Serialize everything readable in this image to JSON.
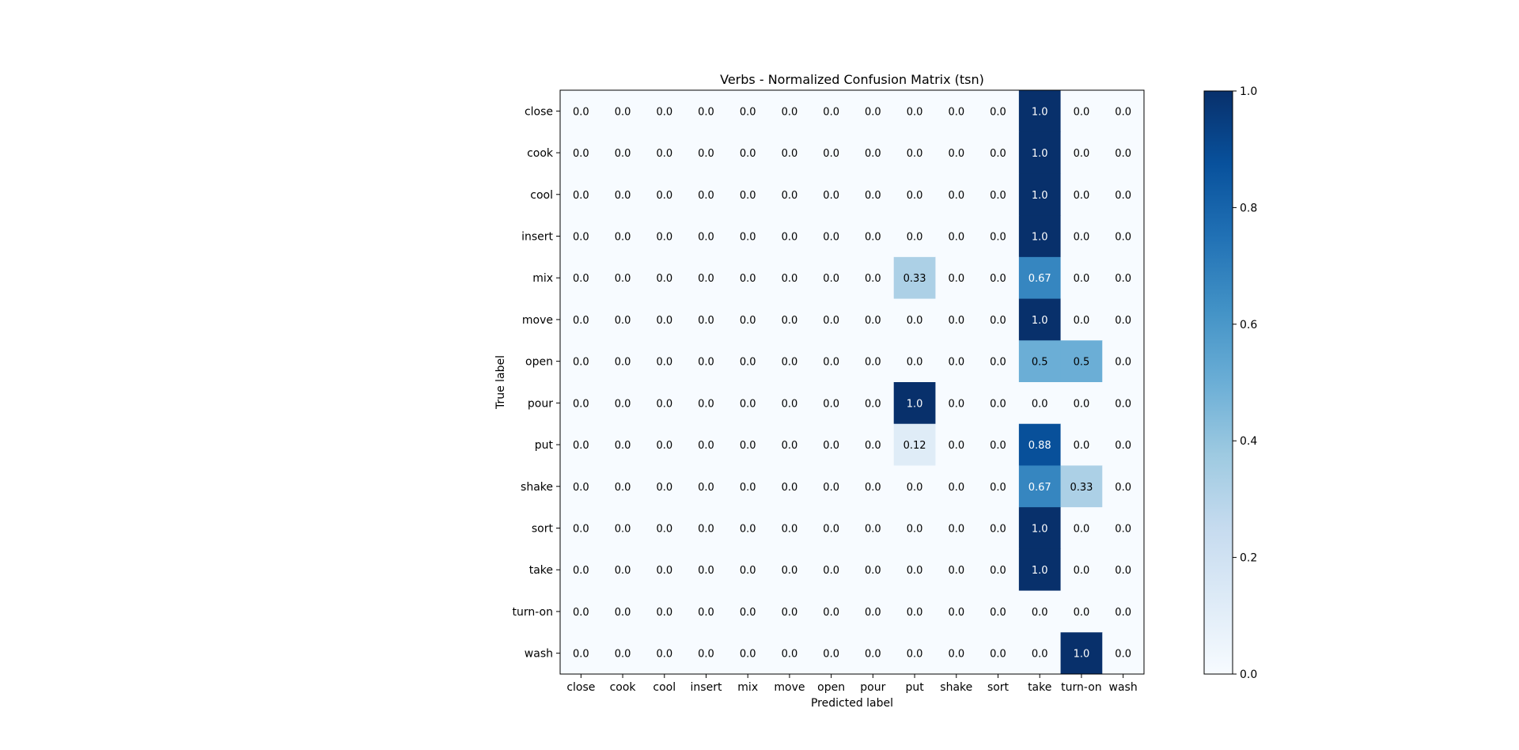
{
  "chart_data": {
    "type": "heatmap",
    "title": "Verbs - Normalized Confusion Matrix (tsn)",
    "xlabel": "Predicted label",
    "ylabel": "True label",
    "x_categories": [
      "close",
      "cook",
      "cool",
      "insert",
      "mix",
      "move",
      "open",
      "pour",
      "put",
      "shake",
      "sort",
      "take",
      "turn-on",
      "wash"
    ],
    "y_categories": [
      "close",
      "cook",
      "cool",
      "insert",
      "mix",
      "move",
      "open",
      "pour",
      "put",
      "shake",
      "sort",
      "take",
      "turn-on",
      "wash"
    ],
    "values": [
      [
        0,
        0,
        0,
        0,
        0,
        0,
        0,
        0,
        0,
        0,
        0,
        1.0,
        0,
        0
      ],
      [
        0,
        0,
        0,
        0,
        0,
        0,
        0,
        0,
        0,
        0,
        0,
        1.0,
        0,
        0
      ],
      [
        0,
        0,
        0,
        0,
        0,
        0,
        0,
        0,
        0,
        0,
        0,
        1.0,
        0,
        0
      ],
      [
        0,
        0,
        0,
        0,
        0,
        0,
        0,
        0,
        0,
        0,
        0,
        1.0,
        0,
        0
      ],
      [
        0,
        0,
        0,
        0,
        0,
        0,
        0,
        0,
        0.33,
        0,
        0,
        0.67,
        0,
        0
      ],
      [
        0,
        0,
        0,
        0,
        0,
        0,
        0,
        0,
        0,
        0,
        0,
        1.0,
        0,
        0
      ],
      [
        0,
        0,
        0,
        0,
        0,
        0,
        0,
        0,
        0,
        0,
        0,
        0.5,
        0.5,
        0
      ],
      [
        0,
        0,
        0,
        0,
        0,
        0,
        0,
        0,
        1.0,
        0,
        0,
        0,
        0,
        0
      ],
      [
        0,
        0,
        0,
        0,
        0,
        0,
        0,
        0,
        0.12,
        0,
        0,
        0.88,
        0,
        0
      ],
      [
        0,
        0,
        0,
        0,
        0,
        0,
        0,
        0,
        0,
        0,
        0,
        0.67,
        0.33,
        0
      ],
      [
        0,
        0,
        0,
        0,
        0,
        0,
        0,
        0,
        0,
        0,
        0,
        1.0,
        0,
        0
      ],
      [
        0,
        0,
        0,
        0,
        0,
        0,
        0,
        0,
        0,
        0,
        0,
        1.0,
        0,
        0
      ],
      [
        0,
        0,
        0,
        0,
        0,
        0,
        0,
        0,
        0,
        0,
        0,
        0,
        0,
        0
      ],
      [
        0,
        0,
        0,
        0,
        0,
        0,
        0,
        0,
        0,
        0,
        0,
        0,
        1.0,
        0
      ]
    ],
    "labels": [
      [
        "0.0",
        "0.0",
        "0.0",
        "0.0",
        "0.0",
        "0.0",
        "0.0",
        "0.0",
        "0.0",
        "0.0",
        "0.0",
        "1.0",
        "0.0",
        "0.0"
      ],
      [
        "0.0",
        "0.0",
        "0.0",
        "0.0",
        "0.0",
        "0.0",
        "0.0",
        "0.0",
        "0.0",
        "0.0",
        "0.0",
        "1.0",
        "0.0",
        "0.0"
      ],
      [
        "0.0",
        "0.0",
        "0.0",
        "0.0",
        "0.0",
        "0.0",
        "0.0",
        "0.0",
        "0.0",
        "0.0",
        "0.0",
        "1.0",
        "0.0",
        "0.0"
      ],
      [
        "0.0",
        "0.0",
        "0.0",
        "0.0",
        "0.0",
        "0.0",
        "0.0",
        "0.0",
        "0.0",
        "0.0",
        "0.0",
        "1.0",
        "0.0",
        "0.0"
      ],
      [
        "0.0",
        "0.0",
        "0.0",
        "0.0",
        "0.0",
        "0.0",
        "0.0",
        "0.0",
        "0.33",
        "0.0",
        "0.0",
        "0.67",
        "0.0",
        "0.0"
      ],
      [
        "0.0",
        "0.0",
        "0.0",
        "0.0",
        "0.0",
        "0.0",
        "0.0",
        "0.0",
        "0.0",
        "0.0",
        "0.0",
        "1.0",
        "0.0",
        "0.0"
      ],
      [
        "0.0",
        "0.0",
        "0.0",
        "0.0",
        "0.0",
        "0.0",
        "0.0",
        "0.0",
        "0.0",
        "0.0",
        "0.0",
        "0.5",
        "0.5",
        "0.0"
      ],
      [
        "0.0",
        "0.0",
        "0.0",
        "0.0",
        "0.0",
        "0.0",
        "0.0",
        "0.0",
        "1.0",
        "0.0",
        "0.0",
        "0.0",
        "0.0",
        "0.0"
      ],
      [
        "0.0",
        "0.0",
        "0.0",
        "0.0",
        "0.0",
        "0.0",
        "0.0",
        "0.0",
        "0.12",
        "0.0",
        "0.0",
        "0.88",
        "0.0",
        "0.0"
      ],
      [
        "0.0",
        "0.0",
        "0.0",
        "0.0",
        "0.0",
        "0.0",
        "0.0",
        "0.0",
        "0.0",
        "0.0",
        "0.0",
        "0.67",
        "0.33",
        "0.0"
      ],
      [
        "0.0",
        "0.0",
        "0.0",
        "0.0",
        "0.0",
        "0.0",
        "0.0",
        "0.0",
        "0.0",
        "0.0",
        "0.0",
        "1.0",
        "0.0",
        "0.0"
      ],
      [
        "0.0",
        "0.0",
        "0.0",
        "0.0",
        "0.0",
        "0.0",
        "0.0",
        "0.0",
        "0.0",
        "0.0",
        "0.0",
        "1.0",
        "0.0",
        "0.0"
      ],
      [
        "0.0",
        "0.0",
        "0.0",
        "0.0",
        "0.0",
        "0.0",
        "0.0",
        "0.0",
        "0.0",
        "0.0",
        "0.0",
        "0.0",
        "0.0",
        "0.0"
      ],
      [
        "0.0",
        "0.0",
        "0.0",
        "0.0",
        "0.0",
        "0.0",
        "0.0",
        "0.0",
        "0.0",
        "0.0",
        "0.0",
        "0.0",
        "1.0",
        "0.0"
      ]
    ],
    "colormap": "Blues",
    "vmin": 0.0,
    "vmax": 1.0,
    "colorbar": {
      "ticks": [
        0.0,
        0.2,
        0.4,
        0.6,
        0.8,
        1.0
      ],
      "tick_labels": [
        "0.0",
        "0.2",
        "0.4",
        "0.6",
        "0.8",
        "1.0"
      ],
      "placement": "right"
    },
    "grid": false
  }
}
